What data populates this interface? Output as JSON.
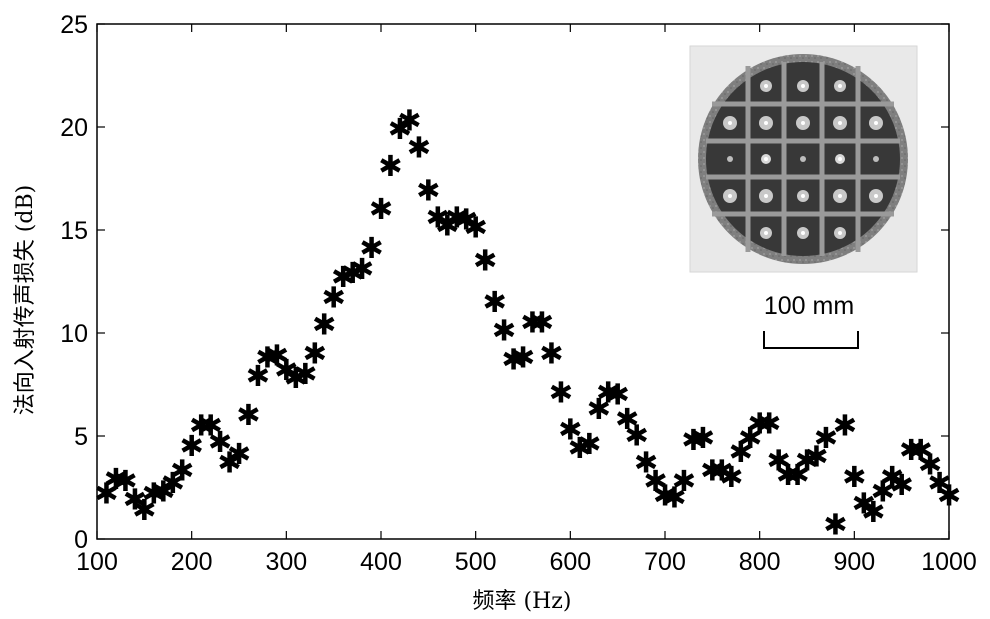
{
  "chart_data": {
    "type": "scatter",
    "title": "",
    "xlabel": "频率 (Hz)",
    "ylabel": "法向入射传声损失 (dB)",
    "xlim": [
      100,
      1000
    ],
    "ylim": [
      0,
      25
    ],
    "xticks": [
      "100",
      "200",
      "300",
      "400",
      "500",
      "600",
      "700",
      "800",
      "900",
      "1000"
    ],
    "yticks": [
      "0",
      "5",
      "10",
      "15",
      "20",
      "25"
    ],
    "grid": false,
    "marker": "asterisk",
    "inset": {
      "scale_bar_label": "100 mm"
    },
    "series": [
      {
        "x": [
          110,
          120,
          130,
          140,
          150,
          160,
          170,
          180,
          190,
          200,
          210,
          220,
          230,
          240,
          250,
          260,
          270,
          280,
          290,
          300,
          310,
          320,
          330,
          340,
          350,
          360,
          370,
          380,
          390,
          400,
          410,
          420,
          430,
          440,
          450,
          460,
          470,
          480,
          490,
          500,
          510,
          520,
          530,
          540,
          550,
          560,
          570,
          580,
          590,
          600,
          610,
          620,
          630,
          640,
          650,
          660,
          670,
          680,
          690,
          700,
          710,
          720,
          730,
          740,
          750,
          760,
          770,
          780,
          790,
          800,
          810,
          820,
          830,
          840,
          850,
          860,
          870,
          880,
          890,
          900,
          910,
          920,
          930,
          940,
          950,
          960,
          970,
          980,
          990,
          1000
        ],
        "y": [
          2.7,
          3.4,
          3.3,
          2.4,
          1.9,
          2.7,
          2.8,
          3.2,
          3.8,
          5.0,
          6.0,
          6.0,
          5.2,
          4.2,
          4.6,
          6.5,
          8.4,
          9.3,
          9.4,
          8.7,
          8.3,
          8.5,
          9.5,
          10.9,
          12.2,
          13.2,
          13.4,
          13.6,
          14.6,
          16.5,
          18.6,
          20.4,
          20.8,
          19.5,
          17.4,
          16.1,
          15.7,
          16.1,
          16.0,
          15.6,
          14.0,
          12.0,
          10.6,
          9.2,
          9.3,
          11.0,
          11.0,
          9.5,
          7.6,
          5.8,
          4.9,
          5.1,
          6.8,
          7.6,
          7.5,
          6.3,
          5.5,
          4.2,
          3.3,
          2.6,
          2.5,
          3.3,
          5.3,
          5.4,
          3.8,
          3.8,
          3.5,
          4.7,
          5.4,
          6.1,
          6.1,
          4.3,
          3.6,
          3.6,
          4.3,
          4.5,
          5.4,
          1.2,
          6.0,
          3.5,
          2.2,
          1.8,
          2.8,
          3.5,
          3.1,
          4.8,
          4.8,
          4.1,
          3.2,
          2.6
        ]
      }
    ]
  }
}
